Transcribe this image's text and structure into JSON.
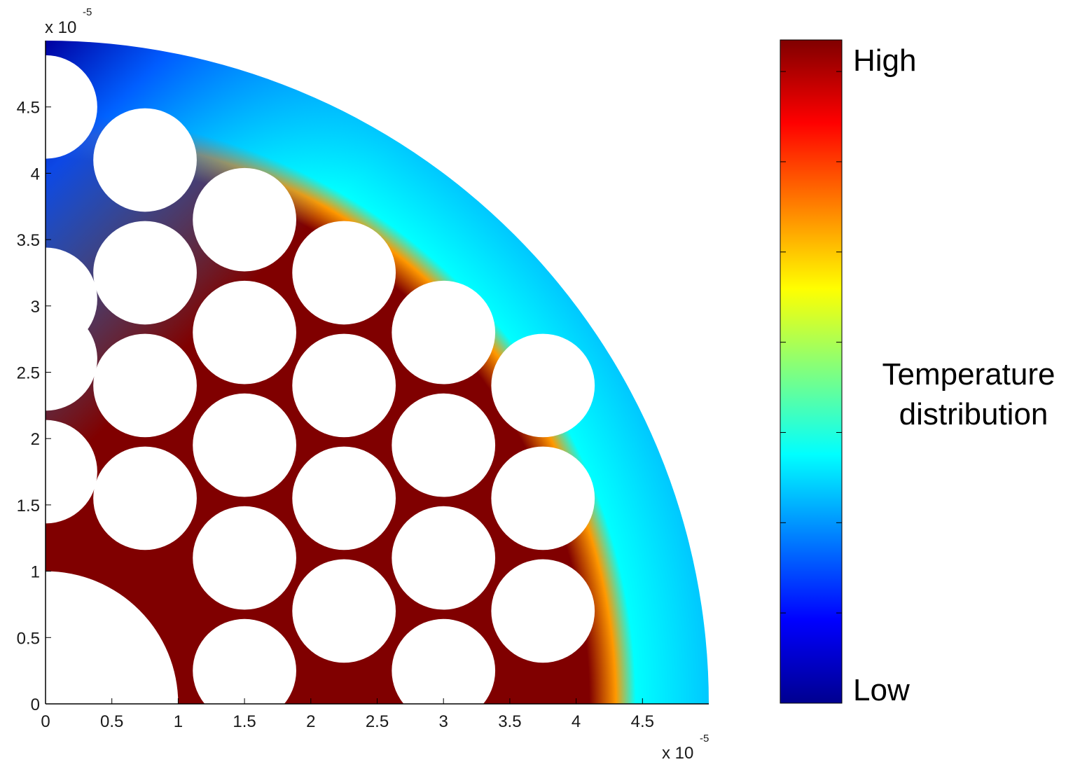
{
  "chart_data": {
    "type": "heatmap",
    "description_of_axes": "",
    "x_ticks": [
      "0",
      "0.5",
      "1",
      "1.5",
      "2",
      "2.5",
      "3",
      "3.5",
      "4",
      "4.5"
    ],
    "y_ticks": [
      "0",
      "0.5",
      "1",
      "1.5",
      "2",
      "2.5",
      "3",
      "3.5",
      "4",
      "4.5"
    ],
    "x_tick_values": [
      0,
      0.5,
      1,
      1.5,
      2,
      2.5,
      3,
      3.5,
      4,
      4.5
    ],
    "y_tick_values": [
      0,
      0.5,
      1,
      1.5,
      2,
      2.5,
      3,
      3.5,
      4,
      4.5
    ],
    "xlim": [
      0,
      5
    ],
    "ylim": [
      0,
      5
    ],
    "x_multiplier": {
      "base": "x 10",
      "exponent": "-5"
    },
    "y_multiplier": {
      "base": "x 10",
      "exponent": "-5"
    },
    "domain_radius": 5.0,
    "center_core": {
      "x": 0,
      "y": 0,
      "r": 1.0
    },
    "holes": [
      {
        "x": 0,
        "y": 4.5,
        "r": 0.39
      },
      {
        "x": 0,
        "y": 3.05,
        "r": 0.39
      },
      {
        "x": 0,
        "y": 2.6,
        "r": 0.39
      },
      {
        "x": 0,
        "y": 1.75,
        "r": 0.39
      },
      {
        "x": 0.75,
        "y": 4.1,
        "r": 0.39
      },
      {
        "x": 0.75,
        "y": 3.25,
        "r": 0.39
      },
      {
        "x": 0.75,
        "y": 2.4,
        "r": 0.39
      },
      {
        "x": 0.75,
        "y": 1.55,
        "r": 0.39
      },
      {
        "x": 1.5,
        "y": 3.65,
        "r": 0.39
      },
      {
        "x": 1.5,
        "y": 2.8,
        "r": 0.39
      },
      {
        "x": 1.5,
        "y": 1.95,
        "r": 0.39
      },
      {
        "x": 1.5,
        "y": 1.1,
        "r": 0.39
      },
      {
        "x": 1.5,
        "y": 0.25,
        "r": 0.39
      },
      {
        "x": 2.25,
        "y": 3.25,
        "r": 0.39
      },
      {
        "x": 2.25,
        "y": 2.4,
        "r": 0.39
      },
      {
        "x": 2.25,
        "y": 1.55,
        "r": 0.39
      },
      {
        "x": 2.25,
        "y": 0.7,
        "r": 0.39
      },
      {
        "x": 3.0,
        "y": 2.8,
        "r": 0.39
      },
      {
        "x": 3.0,
        "y": 1.95,
        "r": 0.39
      },
      {
        "x": 3.0,
        "y": 1.1,
        "r": 0.39
      },
      {
        "x": 3.0,
        "y": 0.25,
        "r": 0.39
      },
      {
        "x": 3.75,
        "y": 2.4,
        "r": 0.39
      },
      {
        "x": 3.75,
        "y": 1.55,
        "r": 0.39
      },
      {
        "x": 3.75,
        "y": 0.7,
        "r": 0.39
      }
    ],
    "colorbar": {
      "colormap": "jet",
      "high_label": "High",
      "low_label": "Low",
      "title_lines": [
        "Temperature",
        "distribution"
      ]
    }
  }
}
